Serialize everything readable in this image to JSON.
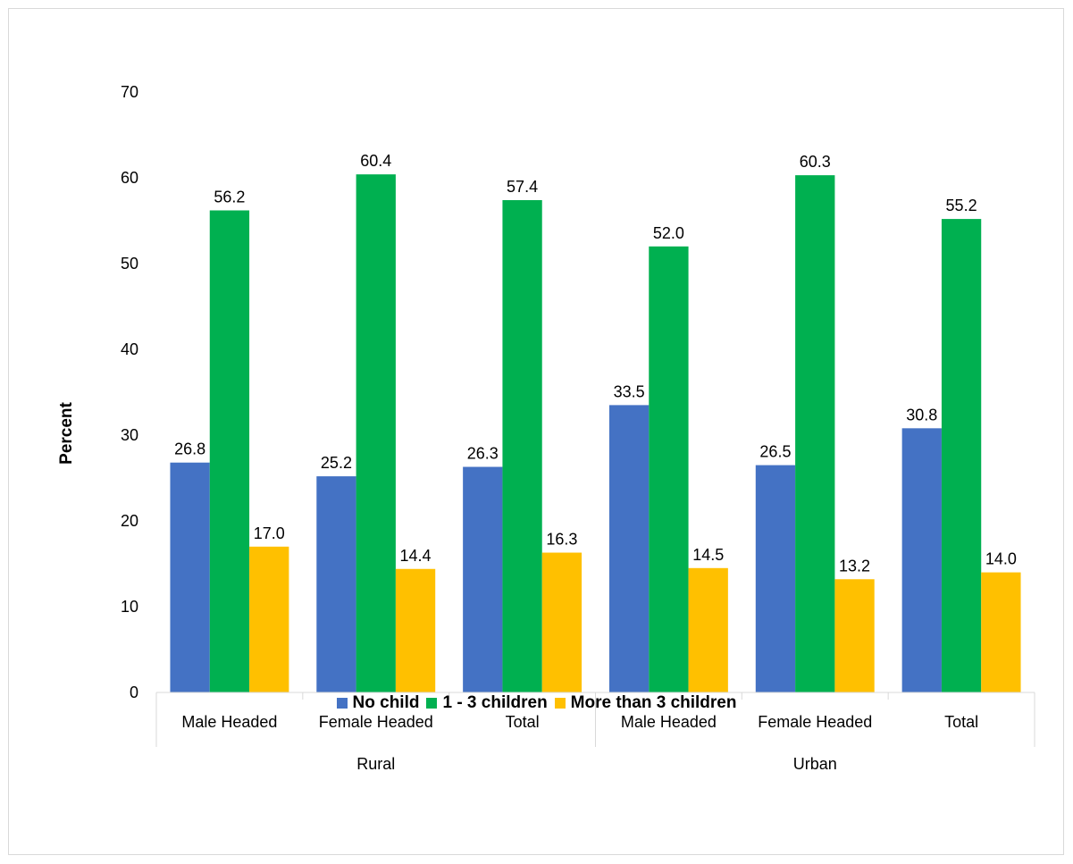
{
  "chart_data": {
    "type": "bar",
    "ylabel": "Percent",
    "ylim": [
      0,
      70
    ],
    "yticks": [
      "0",
      "10",
      "20",
      "30",
      "40",
      "50",
      "60",
      "70"
    ],
    "grid": false,
    "legend_position": "bottom",
    "groups": [
      {
        "name": "Rural",
        "categories": [
          "Male Headed",
          "Female Headed",
          "Total"
        ]
      },
      {
        "name": "Urban",
        "categories": [
          "Male Headed",
          "Female Headed",
          "Total"
        ]
      }
    ],
    "series": [
      {
        "name": "No child",
        "color": "#4472C4",
        "values": [
          26.8,
          25.2,
          26.3,
          33.5,
          26.5,
          30.8
        ],
        "labels": [
          "26.8",
          "25.2",
          "26.3",
          "33.5",
          "26.5",
          "30.8"
        ]
      },
      {
        "name": "1 - 3 children",
        "color": "#00B050",
        "values": [
          56.2,
          60.4,
          57.4,
          52.0,
          60.3,
          55.2
        ],
        "labels": [
          "56.2",
          "60.4",
          "57.4",
          "52.0",
          "60.3",
          "55.2"
        ]
      },
      {
        "name": "More than 3 children",
        "color": "#FFC000",
        "values": [
          17.0,
          14.4,
          16.3,
          14.5,
          13.2,
          14.0
        ],
        "labels": [
          "17.0",
          "14.4",
          "16.3",
          "14.5",
          "13.2",
          "14.0"
        ]
      }
    ]
  }
}
